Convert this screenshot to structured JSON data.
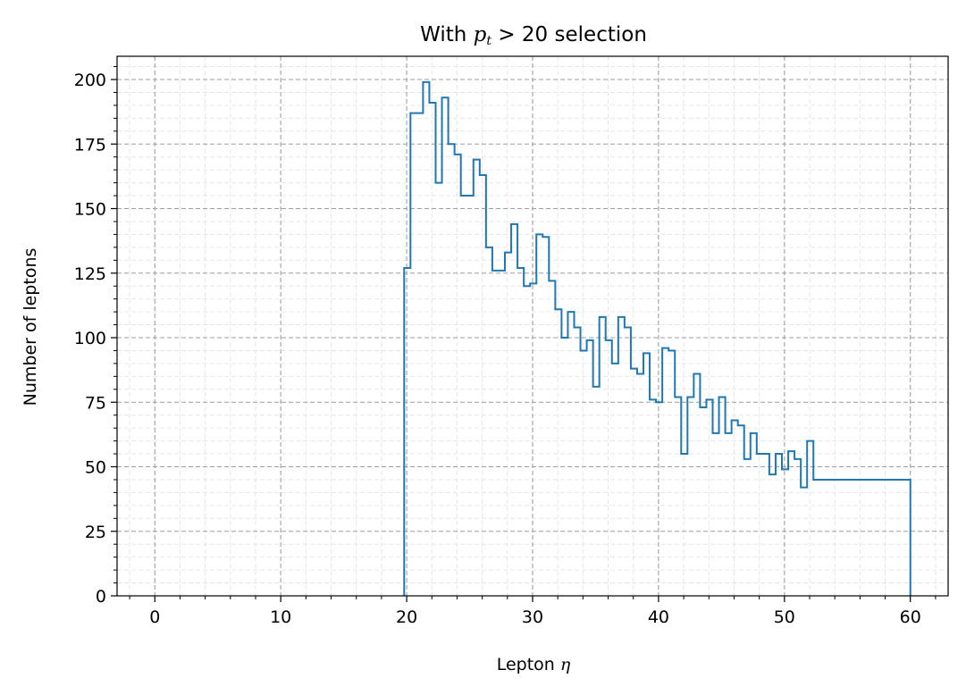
{
  "chart_data": {
    "type": "histogram-step",
    "title": "With $p_t > 20$ selection",
    "title_parts": {
      "prefix": "With ",
      "math_var": "p",
      "math_sub": "t",
      "math_rest": " > 20",
      "suffix": " selection"
    },
    "xlabel": {
      "text": "Lepton ",
      "symbol": "η"
    },
    "ylabel": "Number of leptons",
    "xlim": [
      -3,
      63
    ],
    "ylim": [
      0,
      209
    ],
    "x_ticks": [
      0,
      10,
      20,
      30,
      40,
      50,
      60
    ],
    "y_ticks": [
      0,
      25,
      50,
      75,
      100,
      125,
      150,
      175,
      200
    ],
    "x_tick_labels": [
      "0",
      "10",
      "20",
      "30",
      "40",
      "50",
      "60"
    ],
    "y_tick_labels": [
      "0",
      "25",
      "50",
      "75",
      "100",
      "125",
      "150",
      "175",
      "200"
    ],
    "grid": {
      "major": true,
      "minor": true,
      "style": "dashed"
    },
    "color": "#1f77b4",
    "bin_edges": [
      19.8,
      20.3,
      20.8,
      21.3,
      21.8,
      22.3,
      22.8,
      23.3,
      23.8,
      24.3,
      24.8,
      25.3,
      25.8,
      26.3,
      26.8,
      27.3,
      27.8,
      28.3,
      28.8,
      29.3,
      29.8,
      30.3,
      30.8,
      31.3,
      31.8,
      32.3,
      32.8,
      33.3,
      33.8,
      34.3,
      34.8,
      35.3,
      35.8,
      36.3,
      36.8,
      37.3,
      37.8,
      38.3,
      38.8,
      39.3,
      39.8,
      40.3,
      40.8,
      41.3,
      41.8,
      42.3,
      42.8,
      43.3,
      43.8,
      44.3,
      44.8,
      45.3,
      45.8,
      46.3,
      46.8,
      47.3,
      47.8,
      48.3,
      48.8,
      49.3,
      49.8,
      50.3,
      50.8,
      51.3,
      51.8,
      52.3,
      52.8,
      53.3,
      53.8,
      54.3,
      54.8,
      55.3,
      55.8,
      56.3,
      56.8,
      57.3,
      57.8,
      58.3,
      58.8,
      59.3,
      59.8,
      60.0
    ],
    "counts": [
      127,
      187,
      187,
      199,
      191,
      160,
      193,
      175,
      171,
      155,
      155,
      169,
      163,
      135,
      126,
      126,
      133,
      144,
      127,
      120,
      121,
      140,
      139,
      122,
      111,
      100,
      110,
      104,
      95,
      99,
      81,
      108,
      99,
      90,
      108,
      104,
      88,
      86,
      94,
      76,
      75,
      96,
      95,
      77,
      55,
      77,
      86,
      73,
      76,
      63,
      77,
      63,
      68,
      66,
      53,
      63,
      55,
      55,
      47,
      55,
      49,
      56,
      53,
      42,
      60,
      45,
      45,
      45,
      45,
      45,
      45,
      45,
      45,
      45,
      45,
      45,
      45,
      45,
      45,
      45,
      45
    ]
  }
}
